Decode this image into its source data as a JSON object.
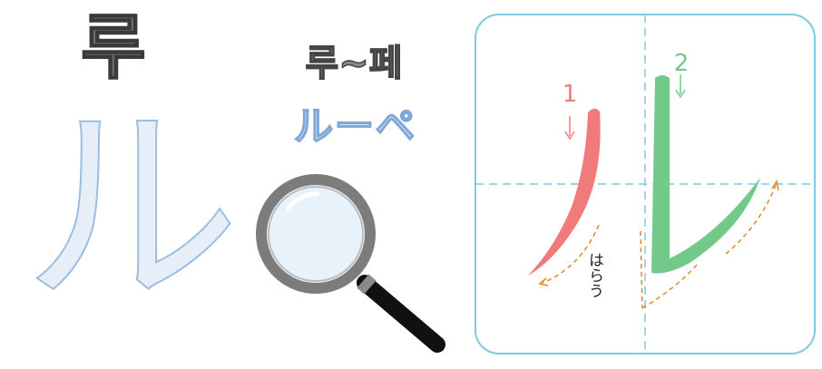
{
  "left_panel": {
    "korean_main": "루",
    "korean_range": "루~페",
    "kana_range": "ルーペ",
    "kana_main": "ル"
  },
  "stroke_panel": {
    "stroke_1_number": "1",
    "stroke_2_number": "2",
    "stroke_note": "はらう",
    "colors": {
      "stroke_1": "#f07a7c",
      "stroke_2": "#72c98a",
      "guide": "#7fc8df",
      "arrow": "#e08a25"
    }
  }
}
